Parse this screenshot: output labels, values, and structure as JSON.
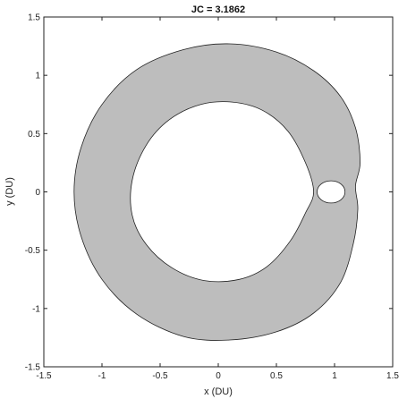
{
  "chart_data": {
    "type": "area",
    "title": "JC = 3.1862",
    "xlabel": "x (DU)",
    "ylabel": "y (DU)",
    "xlim": [
      -1.5,
      1.5
    ],
    "ylim": [
      -1.5,
      1.5
    ],
    "xticks": [
      -1.5,
      -1,
      -0.5,
      0,
      0.5,
      1,
      1.5
    ],
    "yticks": [
      -1.5,
      -1,
      -0.5,
      0,
      0.5,
      1,
      1.5
    ],
    "xtick_labels": [
      "-1.5",
      "-1",
      "-0.5",
      "0",
      "0.5",
      "1",
      "1.5"
    ],
    "ytick_labels": [
      "-1.5",
      "-1",
      "-0.5",
      "0",
      "0.5",
      "1",
      "1.5"
    ],
    "grid": false,
    "legend": "none",
    "regions": {
      "outer_boundary": [
        [
          1.18,
          0.05
        ],
        [
          1.22,
          0.25
        ],
        [
          1.18,
          0.55
        ],
        [
          1.05,
          0.82
        ],
        [
          0.82,
          1.04
        ],
        [
          0.5,
          1.2
        ],
        [
          0.1,
          1.27
        ],
        [
          -0.3,
          1.22
        ],
        [
          -0.7,
          1.05
        ],
        [
          -1.0,
          0.75
        ],
        [
          -1.18,
          0.38
        ],
        [
          -1.24,
          0.0
        ],
        [
          -1.18,
          -0.38
        ],
        [
          -1.0,
          -0.75
        ],
        [
          -0.7,
          -1.05
        ],
        [
          -0.3,
          -1.24
        ],
        [
          0.1,
          -1.27
        ],
        [
          0.5,
          -1.2
        ],
        [
          0.82,
          -1.04
        ],
        [
          1.05,
          -0.78
        ],
        [
          1.16,
          -0.45
        ],
        [
          1.2,
          -0.15
        ],
        [
          1.18,
          0.05
        ]
      ],
      "inner_boundary": [
        [
          0.82,
          0.0
        ],
        [
          0.75,
          0.25
        ],
        [
          0.6,
          0.52
        ],
        [
          0.38,
          0.7
        ],
        [
          0.12,
          0.77
        ],
        [
          -0.15,
          0.75
        ],
        [
          -0.42,
          0.62
        ],
        [
          -0.62,
          0.4
        ],
        [
          -0.74,
          0.1
        ],
        [
          -0.74,
          -0.2
        ],
        [
          -0.62,
          -0.45
        ],
        [
          -0.4,
          -0.65
        ],
        [
          -0.12,
          -0.76
        ],
        [
          0.18,
          -0.75
        ],
        [
          0.42,
          -0.64
        ],
        [
          0.62,
          -0.42
        ],
        [
          0.75,
          -0.18
        ],
        [
          0.82,
          0.0
        ]
      ],
      "secondary_hole": {
        "center": [
          0.97,
          0.0
        ],
        "rx": 0.12,
        "ry": 0.095
      },
      "fill_color": "#bdbdbd",
      "boundary_color": "#222222"
    }
  }
}
